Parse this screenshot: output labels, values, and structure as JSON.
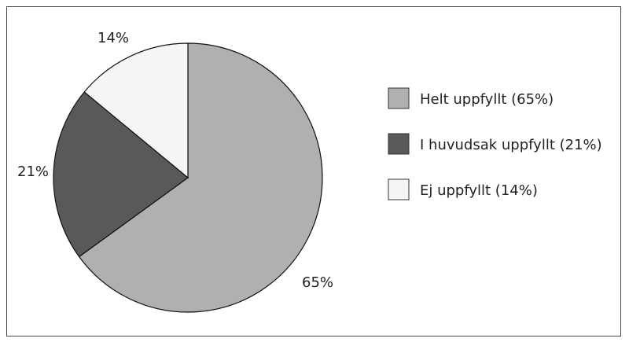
{
  "chart_data": {
    "type": "pie",
    "slices": [
      {
        "label": "Helt uppfyllt (65%)",
        "value": 65,
        "percent_label": "65%",
        "color": "#b0b0b0"
      },
      {
        "label": "I huvudsak uppfyllt (21%)",
        "value": 21,
        "percent_label": "21%",
        "color": "#58595b"
      },
      {
        "label": "Ej uppfyllt (14%)",
        "value": 14,
        "percent_label": "14%",
        "color": "#f4f5f4"
      }
    ],
    "legend_position": "right"
  }
}
